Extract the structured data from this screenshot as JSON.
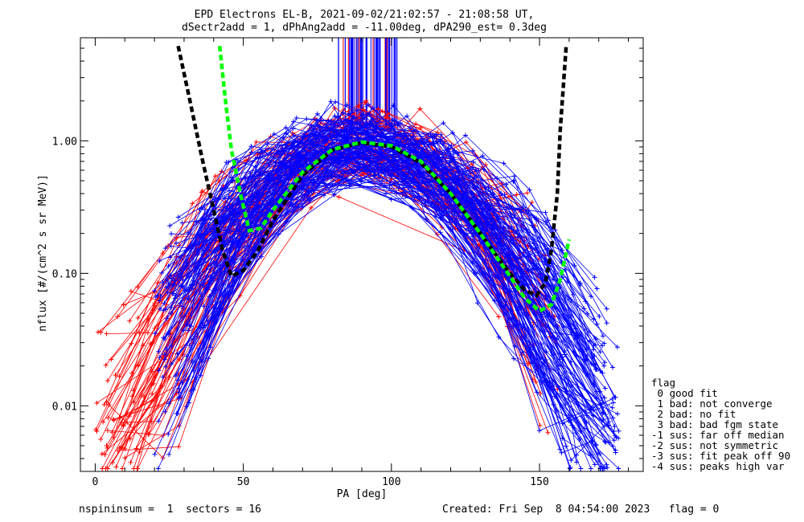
{
  "chart_data": {
    "type": "line",
    "title_line1": "EPD Electrons EL-B, 2021-09-02/21:02:57 - 21:08:58 UT,",
    "title_line2": "dSectr2add = 1, dPhAng2add = -11.00deg, dPA290_est=   0.3deg",
    "xlabel": "PA [deg]",
    "ylabel": "nflux [#/(cm^2 s sr MeV)]",
    "x_scale": "linear",
    "y_scale": "log",
    "xlim": [
      -5,
      185
    ],
    "ylim": [
      0.0032,
      6.0
    ],
    "x_ticks": [
      0,
      50,
      100,
      150
    ],
    "x_tick_labels": [
      "0",
      "50",
      "100",
      "150"
    ],
    "y_ticks": [
      0.01,
      0.1,
      1.0
    ],
    "y_tick_labels": [
      "0.01",
      "0.10",
      "1.00"
    ],
    "grid": false,
    "series": [
      {
        "style": "black dashed fit",
        "color": "#000000",
        "points": [
          [
            28,
            5.2
          ],
          [
            32,
            2.0
          ],
          [
            36,
            0.75
          ],
          [
            40,
            0.3
          ],
          [
            43,
            0.15
          ],
          [
            46,
            0.095
          ],
          [
            50,
            0.105
          ],
          [
            55,
            0.15
          ],
          [
            60,
            0.25
          ],
          [
            70,
            0.55
          ],
          [
            80,
            0.85
          ],
          [
            90,
            0.97
          ],
          [
            100,
            0.9
          ],
          [
            110,
            0.68
          ],
          [
            120,
            0.4
          ],
          [
            130,
            0.2
          ],
          [
            140,
            0.1
          ],
          [
            145,
            0.075
          ],
          [
            149,
            0.068
          ],
          [
            152,
            0.085
          ],
          [
            154,
            0.15
          ],
          [
            156,
            0.4
          ],
          [
            157,
            1.2
          ],
          [
            159,
            5.2
          ]
        ]
      },
      {
        "style": "green dashed fit",
        "color": "#00ff00",
        "points": [
          [
            42,
            5.2
          ],
          [
            44,
            2.0
          ],
          [
            46,
            0.85
          ],
          [
            49,
            0.4
          ],
          [
            52,
            0.21
          ],
          [
            56,
            0.22
          ],
          [
            60,
            0.3
          ],
          [
            70,
            0.58
          ],
          [
            80,
            0.86
          ],
          [
            90,
            0.98
          ],
          [
            100,
            0.92
          ],
          [
            110,
            0.7
          ],
          [
            120,
            0.4
          ],
          [
            130,
            0.2
          ],
          [
            140,
            0.095
          ],
          [
            145,
            0.065
          ],
          [
            150,
            0.052
          ],
          [
            154,
            0.058
          ],
          [
            157,
            0.09
          ],
          [
            160,
            0.18
          ]
        ]
      }
    ]
  },
  "legend": {
    "title": "flag",
    "items": [
      " 0 good fit",
      " 1 bad: not converge",
      " 2 bad: no fit",
      " 3 bad: bad fgm state",
      "-1 sus: far off median",
      "-2 sus: not symmetric",
      "-3 sus: fit peak off 90",
      "-4 sus: peaks high var"
    ]
  },
  "footer": {
    "left": "nspininsum =  1  sectors = 16",
    "right": "Created: Fri Sep  8 04:54:00 2023   flag = 0"
  },
  "colors": {
    "red": "#ff0000",
    "blue": "#0000ff",
    "green": "#00ff00",
    "black": "#000000"
  }
}
